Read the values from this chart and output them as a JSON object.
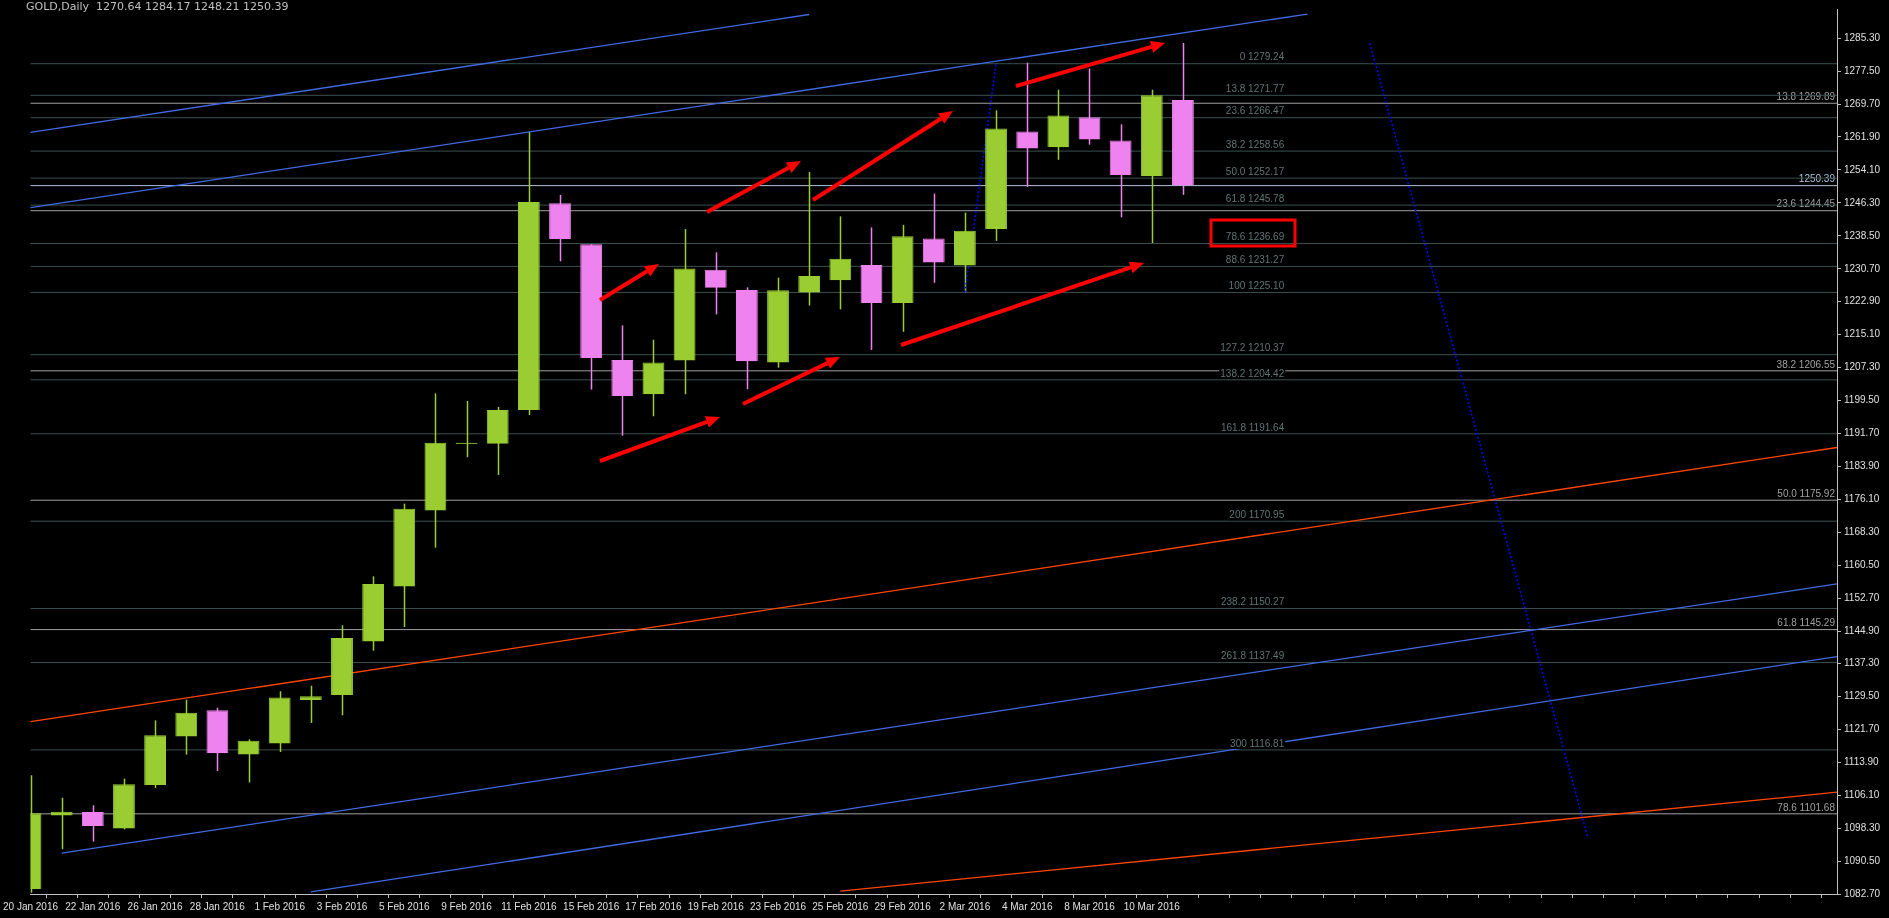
{
  "chart_data": {
    "type": "candlestick",
    "title": "GOLD,Daily  1270.64 1284.17 1248.21 1250.39",
    "categories": [
      "20 Jan 2016",
      null,
      "22 Jan 2016",
      null,
      "26 Jan 2016",
      null,
      "28 Jan 2016",
      null,
      "1 Feb 2016",
      null,
      "3 Feb 2016",
      null,
      "5 Feb 2016",
      null,
      "9 Feb 2016",
      null,
      "11 Feb 2016",
      null,
      "15 Feb 2016",
      null,
      "17 Feb 2016",
      null,
      "19 Feb 2016",
      null,
      "23 Feb 2016",
      null,
      "25 Feb 2016",
      null,
      "29 Feb 2016",
      null,
      "2 Mar 2016",
      null,
      "4 Mar 2016",
      null,
      "8 Mar 2016",
      null,
      "10 Mar 2016",
      null,
      null,
      null,
      null,
      null,
      null,
      null,
      null,
      null,
      null,
      null,
      null,
      null,
      null,
      null,
      null,
      null,
      null,
      null,
      null,
      null,
      null
    ],
    "series": [
      {
        "ohlc": [
          [
            1083.8,
            1110.8,
            1083.0,
            1101.8
          ],
          [
            1101.3,
            1105.5,
            1093.3,
            1102.2
          ],
          [
            1102.1,
            1103.7,
            1095.1,
            1098.8
          ],
          [
            1098.2,
            1110.0,
            1098.0,
            1108.7
          ],
          [
            1108.5,
            1123.8,
            1107.8,
            1120.3
          ],
          [
            1120.0,
            1128.7,
            1115.7,
            1125.6
          ],
          [
            1126.2,
            1126.8,
            1111.8,
            1116.0
          ],
          [
            1115.7,
            1119.3,
            1109.1,
            1119.0
          ],
          [
            1118.3,
            1130.7,
            1116.3,
            1129.2
          ],
          [
            1128.6,
            1132.0,
            1123.2,
            1129.5
          ],
          [
            1129.8,
            1146.3,
            1125.0,
            1143.3
          ],
          [
            1142.5,
            1157.9,
            1140.3,
            1156.1
          ],
          [
            1155.5,
            1175.1,
            1145.9,
            1173.9
          ],
          [
            1173.5,
            1201.2,
            1164.7,
            1189.5
          ],
          [
            1189.2,
            1199.4,
            1186.1,
            1189.5
          ],
          [
            1189.3,
            1198.0,
            1181.9,
            1197.3
          ],
          [
            1197.3,
            1263.1,
            1196.1,
            1246.5
          ],
          [
            1246.2,
            1248.2,
            1232.5,
            1237.7
          ],
          [
            1236.5,
            1236.5,
            1202.1,
            1209.6
          ],
          [
            1209.1,
            1217.3,
            1191.2,
            1200.6
          ],
          [
            1201.0,
            1213.9,
            1195.8,
            1208.5
          ],
          [
            1209.0,
            1240.1,
            1201.0,
            1230.8
          ],
          [
            1230.5,
            1234.6,
            1219.9,
            1226.2
          ],
          [
            1225.7,
            1226.3,
            1202.2,
            1208.8
          ],
          [
            1208.5,
            1228.6,
            1207.3,
            1225.6
          ],
          [
            1225.1,
            1253.6,
            1222.0,
            1229.0
          ],
          [
            1228.0,
            1243.1,
            1221.1,
            1233.1
          ],
          [
            1231.6,
            1240.5,
            1211.5,
            1222.6
          ],
          [
            1222.6,
            1241.1,
            1215.8,
            1238.4
          ],
          [
            1237.9,
            1248.5,
            1227.4,
            1232.2
          ],
          [
            1231.5,
            1244.0,
            1225.1,
            1239.7
          ],
          [
            1240.1,
            1268.2,
            1237.3,
            1263.9
          ],
          [
            1263.2,
            1279.5,
            1250.1,
            1259.2
          ],
          [
            1259.5,
            1273.1,
            1256.5,
            1267.0
          ],
          [
            1266.6,
            1278.1,
            1260.1,
            1261.3
          ],
          [
            1261.1,
            1264.9,
            1242.9,
            1252.9
          ],
          [
            1252.6,
            1273.1,
            1236.8,
            1271.8
          ],
          [
            1270.64,
            1284.17,
            1248.21,
            1250.39
          ],
          null,
          null,
          null,
          null,
          null,
          null,
          null,
          null,
          null,
          null,
          null,
          null,
          null,
          null,
          null,
          null,
          null,
          null,
          null,
          null,
          null
        ],
        "colors": [
          "#9acd32",
          "#9acd32",
          "#ee82ee",
          "#9acd32",
          "#9acd32",
          "#9acd32",
          "#ee82ee",
          "#9acd32",
          "#9acd32",
          "#9acd32",
          "#9acd32",
          "#9acd32",
          "#9acd32",
          "#9acd32",
          "#9acd32",
          "#9acd32",
          "#9acd32",
          "#ee82ee",
          "#ee82ee",
          "#ee82ee",
          "#9acd32",
          "#9acd32",
          "#ee82ee",
          "#ee82ee",
          "#9acd32",
          "#9acd32",
          "#9acd32",
          "#ee82ee",
          "#9acd32",
          "#ee82ee",
          "#9acd32",
          "#9acd32",
          "#ee82ee",
          "#9acd32",
          "#ee82ee",
          "#ee82ee",
          "#9acd32",
          "#ee82ee",
          null,
          null,
          null,
          null,
          null,
          null,
          null,
          null,
          null,
          null,
          null,
          null,
          null,
          null,
          null,
          null,
          null,
          null,
          null,
          null,
          null
        ]
      },
      {
        "type": "line",
        "color": "#4169e1",
        "values": [
          1263.0,
          null,
          null,
          null,
          null,
          null,
          null,
          null,
          null,
          null,
          null,
          null,
          null,
          null,
          null,
          null,
          null,
          null,
          null,
          null,
          null,
          null,
          null,
          null,
          null,
          1290.9,
          null,
          null,
          null,
          null,
          null,
          null,
          null,
          null,
          null,
          null,
          null,
          null,
          null,
          null,
          null,
          null,
          null,
          null,
          null,
          null,
          null,
          null,
          null,
          null,
          null,
          null,
          null,
          null,
          null,
          null,
          null,
          null,
          null
        ]
      },
      {
        "type": "line",
        "color": "#4169e1",
        "values": [
          1245.2,
          null,
          null,
          null,
          null,
          null,
          null,
          null,
          null,
          null,
          null,
          null,
          null,
          null,
          null,
          null,
          null,
          null,
          null,
          null,
          null,
          null,
          null,
          null,
          null,
          null,
          null,
          null,
          null,
          null,
          null,
          null,
          null,
          null,
          null,
          null,
          null,
          null,
          null,
          null,
          null,
          1291.0,
          null,
          null,
          null,
          null,
          null,
          null,
          null,
          null,
          null,
          null,
          null,
          null,
          null,
          null,
          null,
          null,
          null
        ]
      },
      {
        "type": "line",
        "color": "#4169e1",
        "values": [
          null,
          1092.4,
          null,
          null,
          null,
          null,
          null,
          null,
          null,
          null,
          null,
          null,
          null,
          null,
          null,
          null,
          null,
          null,
          null,
          null,
          null,
          null,
          null,
          null,
          null,
          null,
          null,
          null,
          null,
          null,
          null,
          null,
          null,
          null,
          null,
          null,
          null,
          null,
          null,
          null,
          null,
          null,
          null,
          null,
          null,
          null,
          null,
          null,
          null,
          null,
          null,
          null,
          null,
          null,
          null,
          null,
          null,
          null,
          1156.1
        ]
      },
      {
        "type": "line",
        "color": "#4169e1",
        "values": [
          null,
          null,
          null,
          null,
          null,
          null,
          null,
          null,
          null,
          1083.2,
          null,
          null,
          null,
          null,
          null,
          null,
          null,
          null,
          null,
          null,
          null,
          null,
          null,
          null,
          null,
          null,
          null,
          null,
          null,
          null,
          null,
          null,
          null,
          null,
          null,
          null,
          null,
          null,
          null,
          null,
          null,
          null,
          null,
          null,
          null,
          null,
          null,
          null,
          null,
          null,
          null,
          null,
          null,
          null,
          null,
          null,
          null,
          null,
          1138.9
        ]
      },
      {
        "type": "line",
        "color": "#ff4500",
        "values": [
          1123.5,
          null,
          null,
          null,
          null,
          null,
          null,
          null,
          null,
          null,
          null,
          null,
          null,
          null,
          null,
          null,
          null,
          null,
          null,
          null,
          null,
          null,
          null,
          null,
          null,
          null,
          null,
          null,
          null,
          null,
          null,
          null,
          null,
          null,
          null,
          null,
          null,
          null,
          null,
          null,
          null,
          null,
          null,
          null,
          null,
          null,
          null,
          null,
          null,
          null,
          null,
          null,
          null,
          null,
          null,
          null,
          null,
          null,
          1188.4
        ]
      },
      {
        "type": "line",
        "color": "#ff4500",
        "values": [
          null,
          null,
          null,
          null,
          null,
          null,
          null,
          null,
          null,
          null,
          null,
          null,
          null,
          null,
          null,
          null,
          null,
          null,
          null,
          null,
          null,
          null,
          null,
          null,
          null,
          null,
          1083.4,
          null,
          null,
          null,
          null,
          null,
          null,
          null,
          null,
          null,
          null,
          null,
          null,
          null,
          null,
          null,
          null,
          null,
          null,
          null,
          null,
          null,
          null,
          null,
          null,
          null,
          null,
          null,
          null,
          null,
          null,
          null,
          1106.8
        ]
      },
      {
        "type": "line",
        "color": "#0000ff",
        "line_style": "dotted",
        "values": [
          null,
          null,
          null,
          null,
          null,
          null,
          null,
          null,
          null,
          null,
          null,
          null,
          null,
          null,
          null,
          null,
          null,
          null,
          null,
          null,
          null,
          null,
          null,
          null,
          null,
          null,
          null,
          null,
          null,
          null,
          1225.1,
          1279.2,
          null,
          null,
          null,
          null,
          null,
          null,
          null,
          null,
          null,
          null,
          null,
          null,
          null,
          null,
          null,
          null,
          null,
          null,
          null,
          null,
          null,
          null,
          null,
          null,
          null,
          null,
          null
        ]
      },
      {
        "type": "line",
        "color": "#0000ff",
        "line_style": "dotted",
        "values": [
          null,
          null,
          null,
          null,
          null,
          null,
          null,
          null,
          null,
          null,
          null,
          null,
          null,
          null,
          null,
          null,
          null,
          null,
          null,
          null,
          null,
          null,
          null,
          null,
          null,
          null,
          null,
          null,
          null,
          null,
          null,
          null,
          null,
          null,
          null,
          null,
          null,
          null,
          null,
          null,
          null,
          null,
          null,
          1284.1,
          null,
          null,
          null,
          null,
          null,
          null,
          1096.1,
          null,
          null,
          null,
          null,
          null,
          null,
          null,
          null
        ]
      }
    ],
    "ylim": [
      1082.7,
      1292.2
    ],
    "yticks": [
      {
        "value": 1082.7,
        "label": "1082.70"
      },
      {
        "value": 1090.5,
        "label": "1090.50"
      },
      {
        "value": 1098.3,
        "label": "1098.30"
      },
      {
        "value": 1106.1,
        "label": "1106.10"
      },
      {
        "value": 1113.9,
        "label": "1113.90"
      },
      {
        "value": 1121.7,
        "label": "1121.70"
      },
      {
        "value": 1129.5,
        "label": "1129.50"
      },
      {
        "value": 1137.3,
        "label": "1137.30"
      },
      {
        "value": 1144.9,
        "label": "1144.90"
      },
      {
        "value": 1152.7,
        "label": "1152.70"
      },
      {
        "value": 1160.5,
        "label": "1160.50"
      },
      {
        "value": 1168.3,
        "label": "1168.30"
      },
      {
        "value": 1176.1,
        "label": "1176.10"
      },
      {
        "value": 1183.9,
        "label": "1183.90"
      },
      {
        "value": 1191.7,
        "label": "1191.70"
      },
      {
        "value": 1199.5,
        "label": "1199.50"
      },
      {
        "value": 1207.3,
        "label": "1207.30"
      },
      {
        "value": 1215.1,
        "label": "1215.10"
      },
      {
        "value": 1222.9,
        "label": "1222.90"
      },
      {
        "value": 1230.7,
        "label": "1230.70"
      },
      {
        "value": 1238.5,
        "label": "1238.50"
      },
      {
        "value": 1246.3,
        "label": "1246.30"
      },
      {
        "value": 1254.1,
        "label": "1254.10"
      },
      {
        "value": 1261.9,
        "label": "1261.90"
      },
      {
        "value": 1269.7,
        "label": "1269.70"
      },
      {
        "value": 1277.5,
        "label": "1277.50"
      },
      {
        "value": 1285.3,
        "label": "1285.30"
      }
    ],
    "ref_lines": [
      {
        "axis": "y",
        "value": 1250.39,
        "label": "1250.39",
        "color": "#b0c4de"
      },
      {
        "axis": "y",
        "value": 1269.89,
        "label": "13.8 1269.89",
        "color": "#a0a0a0"
      },
      {
        "axis": "y",
        "value": 1244.45,
        "label": "23.6 1244.45",
        "color": "#a0a0a0"
      },
      {
        "axis": "y",
        "value": 1206.55,
        "label": "38.2 1206.55",
        "color": "#a0a0a0"
      },
      {
        "axis": "y",
        "value": 1175.92,
        "label": "50.0 1175.92",
        "color": "#a0a0a0"
      },
      {
        "axis": "y",
        "value": 1145.29,
        "label": "61.8 1145.29",
        "color": "#a0a0a0"
      },
      {
        "axis": "y",
        "value": 1101.68,
        "label": "78.6 1101.68",
        "color": "#a0a0a0"
      },
      {
        "axis": "y",
        "value": 1279.24,
        "color": "#3a5050"
      },
      {
        "axis": "y",
        "value": 1271.77,
        "color": "#3a5050"
      },
      {
        "axis": "y",
        "value": 1266.47,
        "color": "#3a5050"
      },
      {
        "axis": "y",
        "value": 1258.56,
        "color": "#3a5050"
      },
      {
        "axis": "y",
        "value": 1252.17,
        "color": "#3a5050"
      },
      {
        "axis": "y",
        "value": 1245.78,
        "color": "#3a5050"
      },
      {
        "axis": "y",
        "value": 1236.69,
        "color": "#3a5050"
      },
      {
        "axis": "y",
        "value": 1231.27,
        "color": "#3a5050"
      },
      {
        "axis": "y",
        "value": 1225.1,
        "color": "#3a5050"
      },
      {
        "axis": "y",
        "value": 1210.37,
        "color": "#3a5050"
      },
      {
        "axis": "y",
        "value": 1204.42,
        "color": "#3a5050"
      },
      {
        "axis": "y",
        "value": 1191.64,
        "color": "#3a5050"
      },
      {
        "axis": "y",
        "value": 1170.95,
        "color": "#3a5050"
      },
      {
        "axis": "y",
        "value": 1150.27,
        "color": "#3a5050"
      },
      {
        "axis": "y",
        "value": 1137.49,
        "color": "#3a5050"
      },
      {
        "axis": "y",
        "value": 1116.81,
        "color": "#3a5050"
      }
    ],
    "annotations": [
      {
        "text": "0 1279.24",
        "y": 1279.24
      },
      {
        "text": "13.8 1271.77",
        "y": 1271.77
      },
      {
        "text": "23.6 1266.47",
        "y": 1266.47
      },
      {
        "text": "38.2 1258.56",
        "y": 1258.56
      },
      {
        "text": "50.0 1252.17",
        "y": 1252.17
      },
      {
        "text": "61.8 1245.78",
        "y": 1245.78
      },
      {
        "text": "78.6 1236.69",
        "y": 1236.69
      },
      {
        "text": "88.6 1231.27",
        "y": 1231.27
      },
      {
        "text": "100 1225.10",
        "y": 1225.1
      },
      {
        "text": "127.2 1210.37",
        "y": 1210.37
      },
      {
        "text": "138.2 1204.42",
        "y": 1204.42
      },
      {
        "text": "161.8 1191.64",
        "y": 1191.64
      },
      {
        "text": "200 1170.95",
        "y": 1170.95
      },
      {
        "text": "238.2 1150.27",
        "y": 1150.27
      },
      {
        "text": "261.8 1137.49",
        "y": 1137.49
      },
      {
        "text": "300 1116.81",
        "y": 1116.81
      }
    ],
    "grid": false,
    "legend": false
  }
}
